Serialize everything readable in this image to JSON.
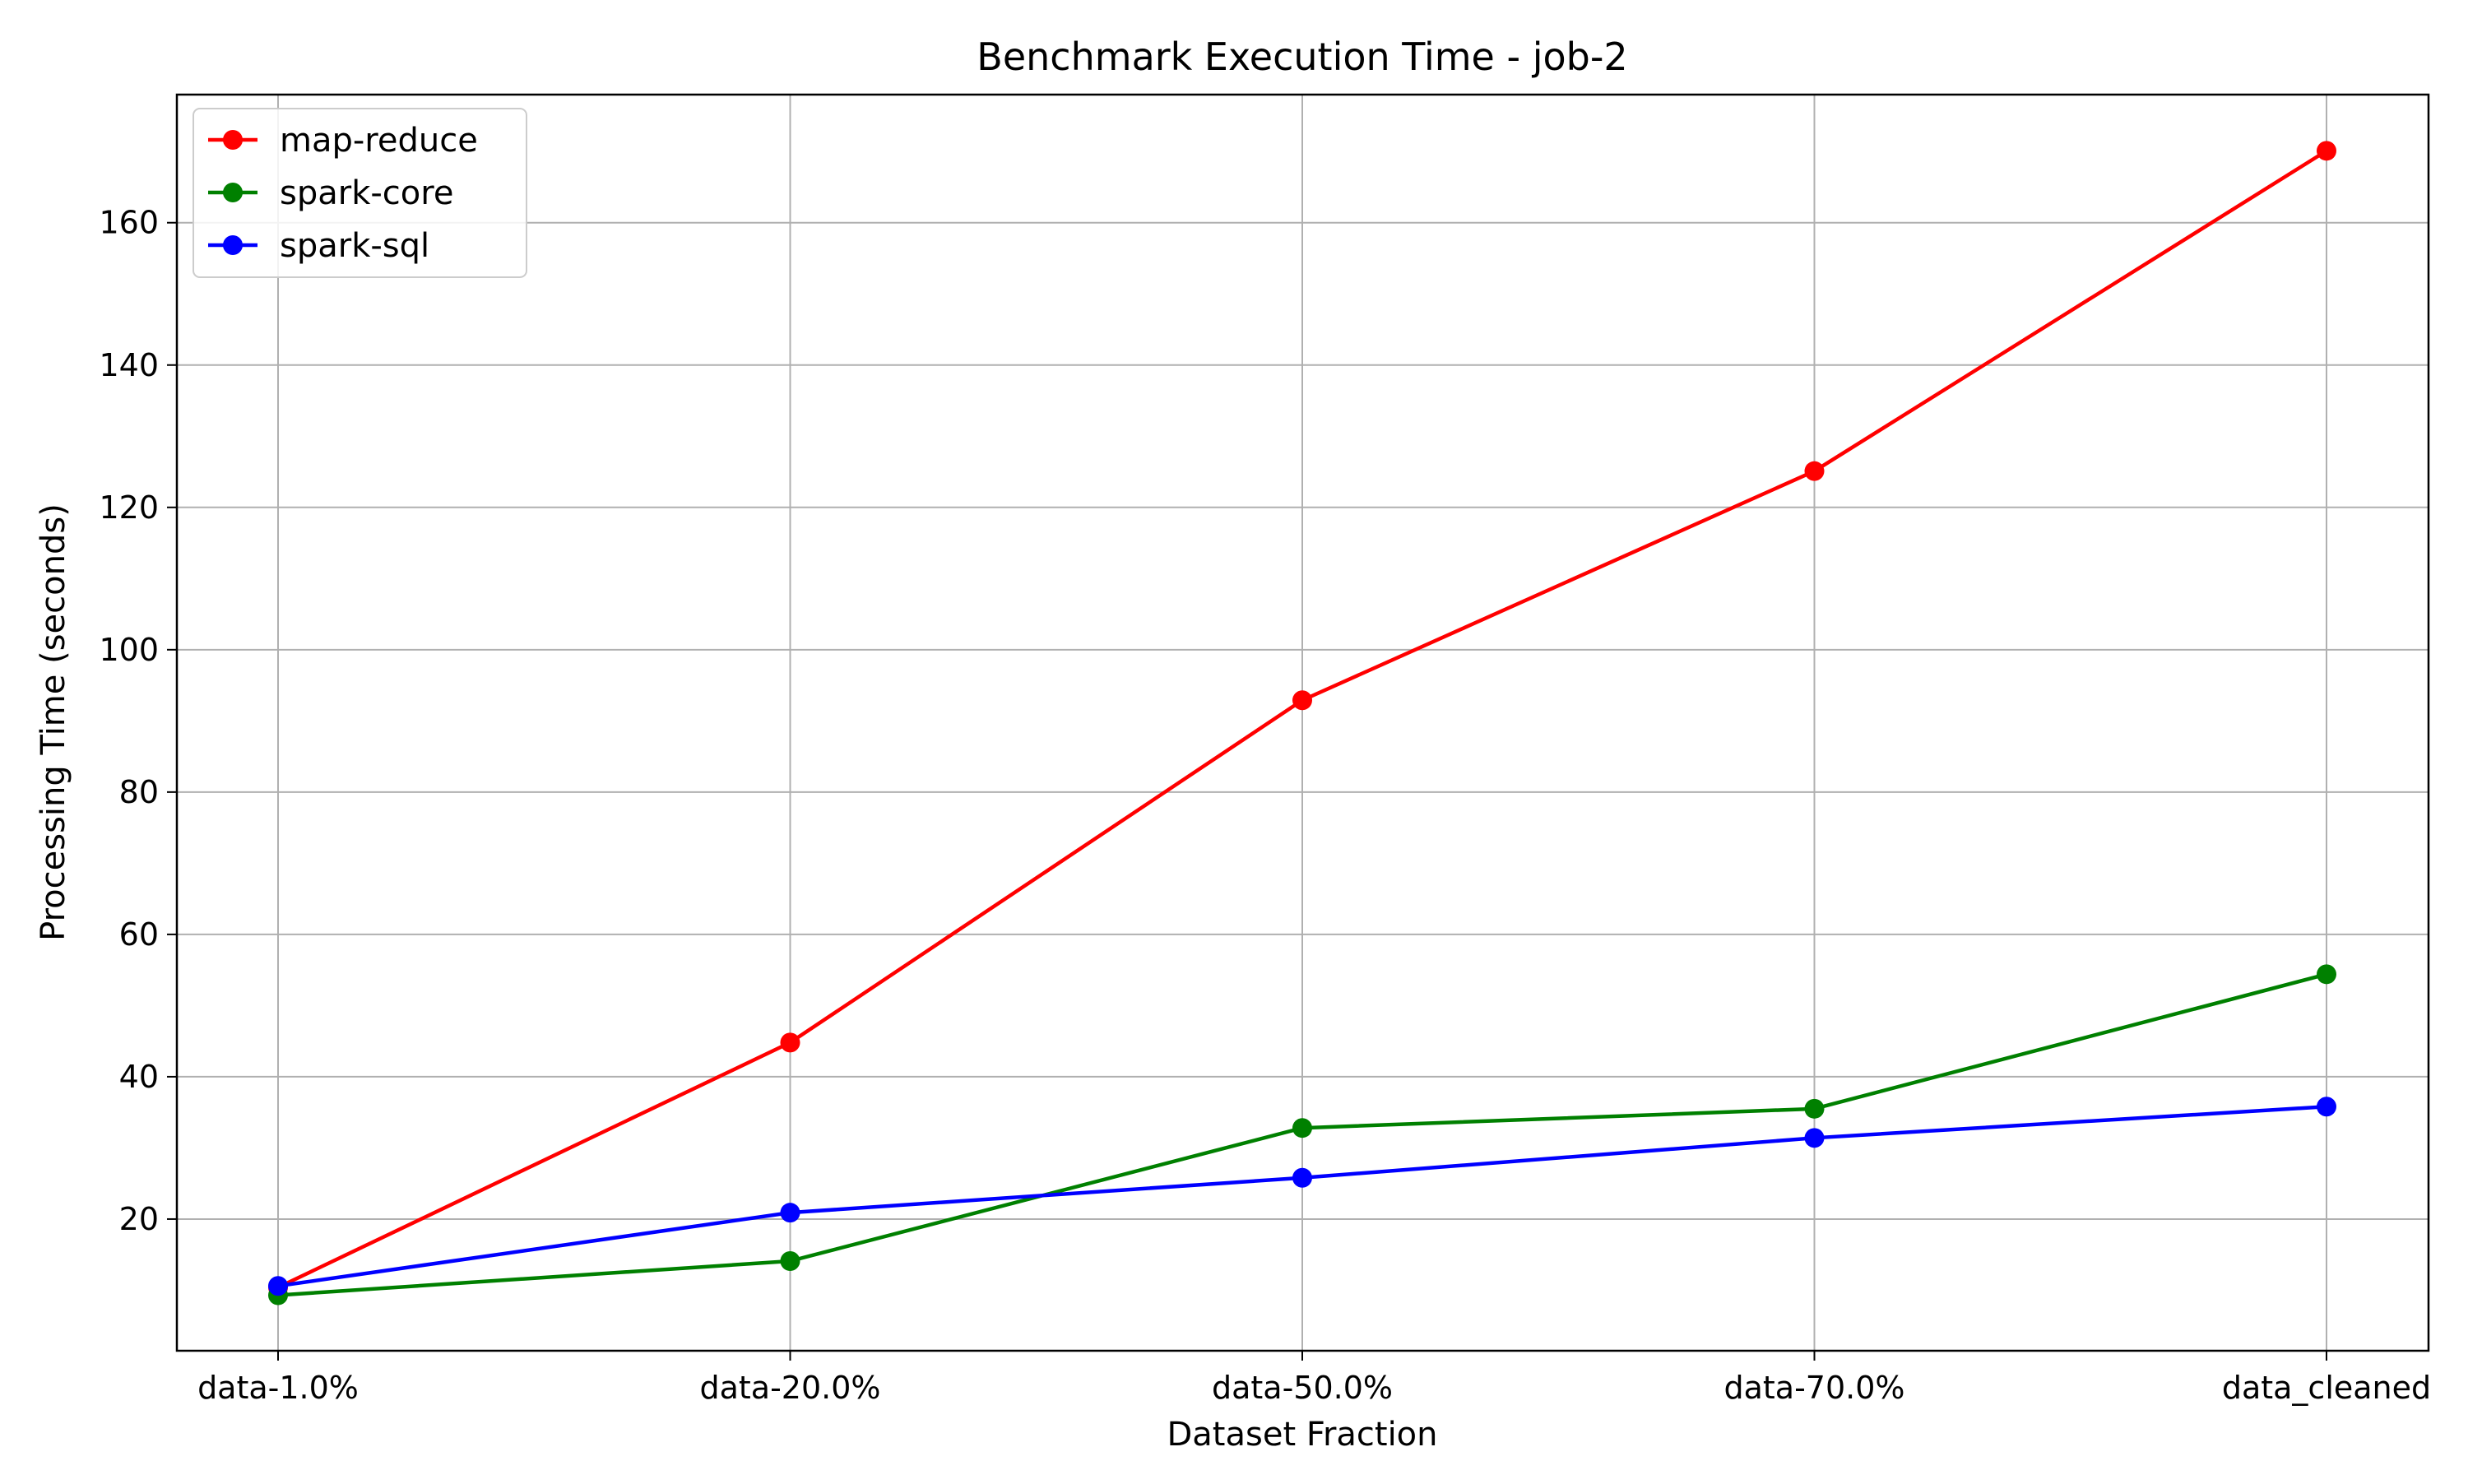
{
  "chart_data": {
    "type": "line",
    "title": "Benchmark Execution Time - job-2",
    "xlabel": "Dataset Fraction",
    "ylabel": "Processing Time (seconds)",
    "categories": [
      "data-1.0%",
      "data-20.0%",
      "data-50.0%",
      "data-70.0%",
      "data_cleaned"
    ],
    "yticks": [
      20,
      40,
      60,
      80,
      100,
      120,
      140,
      160
    ],
    "ylim": [
      1.5,
      178
    ],
    "grid": true,
    "legend_position": "top-left",
    "series": [
      {
        "name": "map-reduce",
        "color": "#ff0000",
        "values": [
          10.4,
          44.8,
          92.9,
          125.1,
          170.1
        ]
      },
      {
        "name": "spark-core",
        "color": "#008000",
        "values": [
          9.3,
          14.1,
          32.8,
          35.5,
          54.4
        ]
      },
      {
        "name": "spark-sql",
        "color": "#0000ff",
        "values": [
          10.6,
          20.9,
          25.8,
          31.4,
          35.8
        ]
      }
    ]
  }
}
